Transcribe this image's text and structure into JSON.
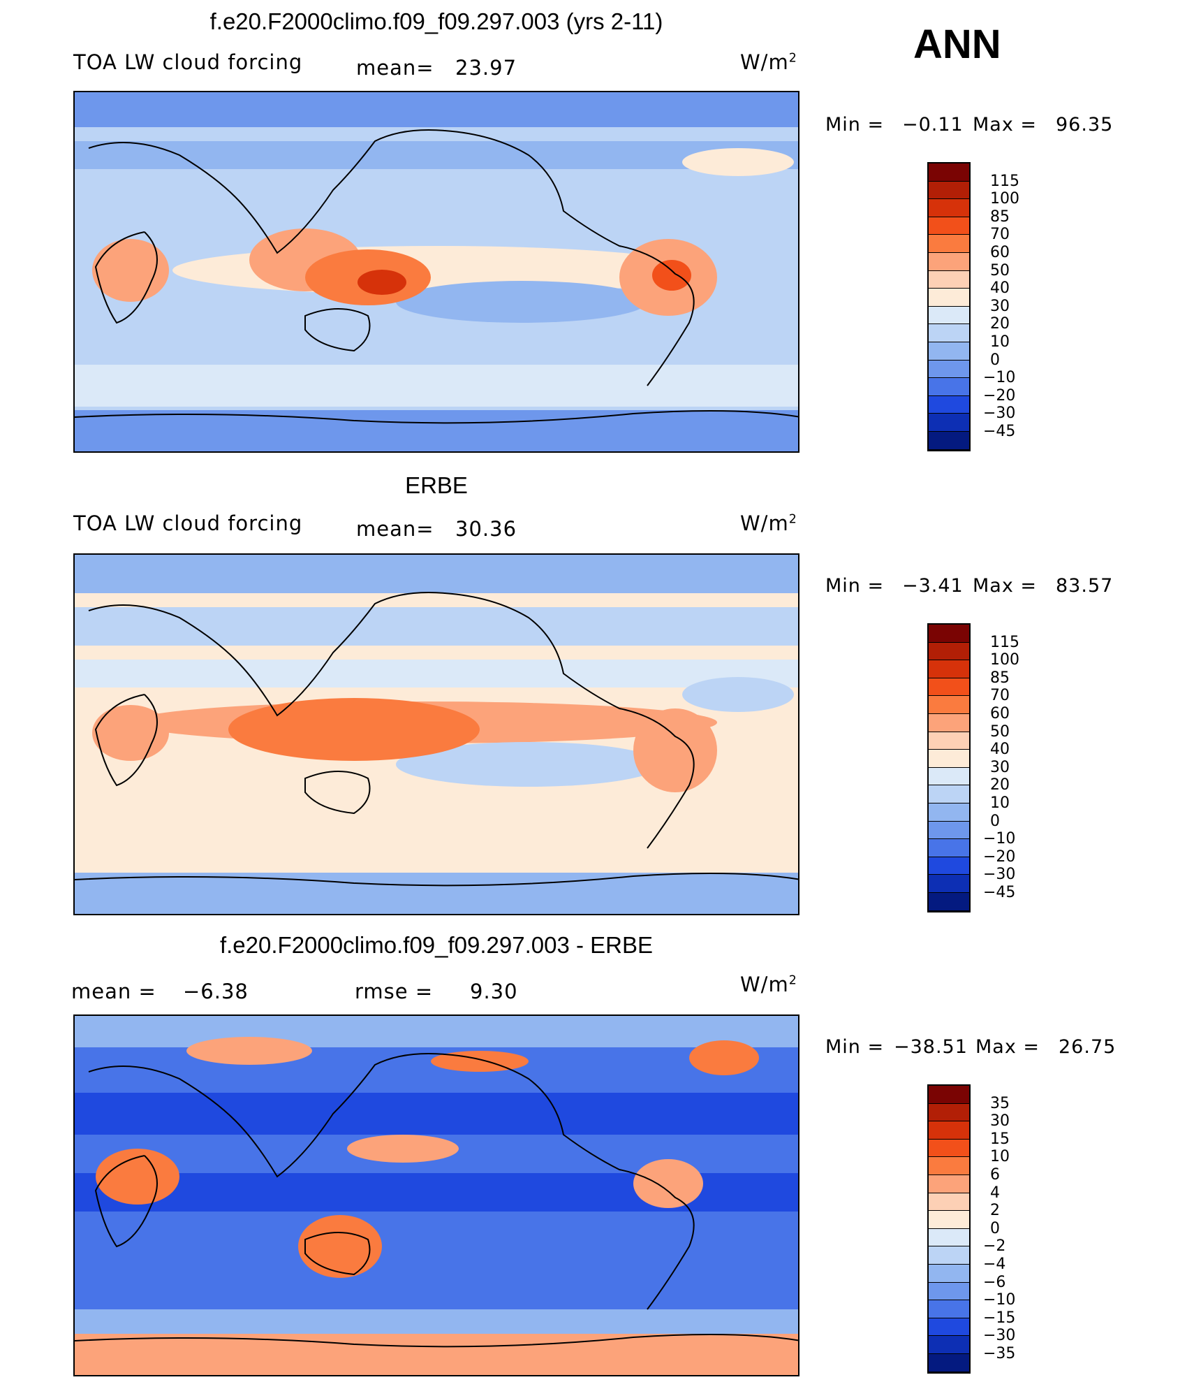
{
  "header": {
    "season": "ANN"
  },
  "units": "W/m",
  "units_sup": "2",
  "chart_data": [
    {
      "type": "heatmap",
      "title": "f.e20.F2000climo.f09_f09.297.003 (yrs 2-11)",
      "variable": "TOA LW cloud forcing",
      "mean_label": "mean=",
      "mean_value": "23.97",
      "min_label": "Min =",
      "min_value": "−0.11",
      "max_label": "Max =",
      "max_value": "96.35",
      "colorbar_levels": [
        "115",
        "100",
        "85",
        "70",
        "60",
        "50",
        "40",
        "30",
        "20",
        "10",
        "0",
        "−10",
        "−20",
        "−30",
        "−45"
      ],
      "colorbar_colors": [
        "#7a0403",
        "#b21f06",
        "#d6320a",
        "#f2501a",
        "#fa7b3f",
        "#fca37a",
        "#fdd0b5",
        "#fdebd8",
        "#dbe9f8",
        "#bcd4f5",
        "#92b6f0",
        "#6e97ec",
        "#4874e8",
        "#1f49df",
        "#0d2fb4",
        "#041a80"
      ],
      "series_note": "map field"
    },
    {
      "type": "heatmap",
      "title": "ERBE",
      "variable": "TOA LW cloud forcing",
      "mean_label": "mean=",
      "mean_value": "30.36",
      "min_label": "Min =",
      "min_value": "−3.41",
      "max_label": "Max =",
      "max_value": "83.57",
      "colorbar_levels": [
        "115",
        "100",
        "85",
        "70",
        "60",
        "50",
        "40",
        "30",
        "20",
        "10",
        "0",
        "−10",
        "−20",
        "−30",
        "−45"
      ],
      "colorbar_colors": [
        "#7a0403",
        "#b21f06",
        "#d6320a",
        "#f2501a",
        "#fa7b3f",
        "#fca37a",
        "#fdd0b5",
        "#fdebd8",
        "#dbe9f8",
        "#bcd4f5",
        "#92b6f0",
        "#6e97ec",
        "#4874e8",
        "#1f49df",
        "#0d2fb4",
        "#041a80"
      ]
    },
    {
      "type": "heatmap",
      "title": "f.e20.F2000climo.f09_f09.297.003 - ERBE",
      "mean_label": "mean =",
      "mean_value": "−6.38",
      "rmse_label": "rmse =",
      "rmse_value": "9.30",
      "min_label": "Min =",
      "min_value": "−38.51",
      "max_label": "Max =",
      "max_value": "26.75",
      "colorbar_levels": [
        "35",
        "30",
        "15",
        "10",
        "6",
        "4",
        "2",
        "0",
        "−2",
        "−4",
        "−6",
        "−10",
        "−15",
        "−30",
        "−35"
      ],
      "colorbar_colors": [
        "#7a0403",
        "#b21f06",
        "#d6320a",
        "#f2501a",
        "#fa7b3f",
        "#fca37a",
        "#fdd0b5",
        "#fdebd8",
        "#dbe9f8",
        "#bcd4f5",
        "#92b6f0",
        "#6e97ec",
        "#4874e8",
        "#1f49df",
        "#0d2fb4",
        "#041a80"
      ]
    }
  ]
}
